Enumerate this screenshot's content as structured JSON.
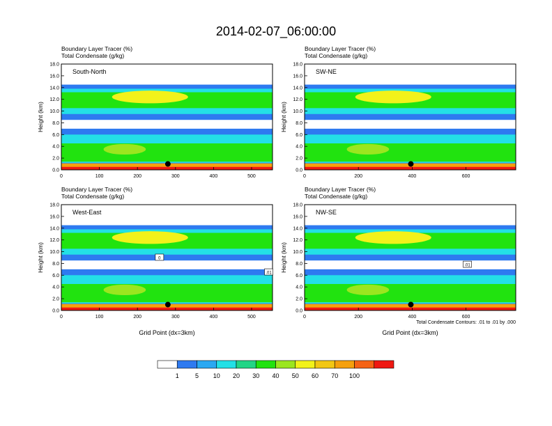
{
  "title": "2014-02-07_06:00:00",
  "colorbar": {
    "colors": [
      "#ffffff",
      "#2e7af0",
      "#2aa8f2",
      "#23e0e6",
      "#22d586",
      "#21e30f",
      "#9be61f",
      "#f2f21a",
      "#f2c713",
      "#f5a00d",
      "#f56215",
      "#ef1812"
    ],
    "labels": [
      "1",
      "5",
      "10",
      "20",
      "30",
      "40",
      "50",
      "60",
      "70",
      "100"
    ]
  },
  "contour_note": "Total Condensate Contours: .01 to .01 by .000",
  "chart_data": [
    {
      "type": "heatmap",
      "label": "South-North",
      "lines": [
        "Boundary Layer Tracer   (%)",
        "Total Condensate   (g/kg)"
      ],
      "xlabel": "",
      "ylabel": "Height (km)",
      "xlim": [
        0,
        555
      ],
      "ylim": [
        0,
        18
      ],
      "xticks": [
        "0",
        "100",
        "200",
        "300",
        "400",
        "500"
      ],
      "yticks": [
        "0.0",
        "2.0",
        "4.0",
        "6.0",
        "8.0",
        "10.0",
        "12.0",
        "14.0",
        "16.0",
        "18.0"
      ],
      "marker": {
        "x": 280,
        "y": 1.0
      },
      "boxes": []
    },
    {
      "type": "heatmap",
      "label": "SW-NE",
      "lines": [
        "Boundary Layer Tracer   (%)",
        "Total Condensate   (g/kg)"
      ],
      "xlabel": "",
      "ylabel": "Height (km)",
      "xlim": [
        0,
        785
      ],
      "ylim": [
        0,
        18
      ],
      "xticks": [
        "0",
        "200",
        "400",
        "600"
      ],
      "yticks": [
        "0.0",
        "2.0",
        "4.0",
        "6.0",
        "8.0",
        "10.0",
        "12.0",
        "14.0",
        "16.0",
        "18.0"
      ],
      "marker": {
        "x": 395,
        "y": 1.0
      },
      "boxes": []
    },
    {
      "type": "heatmap",
      "label": "West-East",
      "lines": [
        "Boundary Layer Tracer   (%)",
        "Total Condensate   (g/kg)"
      ],
      "xlabel": "Grid Point (dx=3km)",
      "ylabel": "Height (km)",
      "xlim": [
        0,
        555
      ],
      "ylim": [
        0,
        18
      ],
      "xticks": [
        "0",
        "100",
        "200",
        "300",
        "400",
        "500"
      ],
      "yticks": [
        "0.0",
        "2.0",
        "4.0",
        "6.0",
        "8.0",
        "10.0",
        "12.0",
        "14.0",
        "16.0",
        "18.0"
      ],
      "marker": {
        "x": 280,
        "y": 1.0
      },
      "boxes": [
        {
          "text": "0",
          "x": 258,
          "y": 9.0
        },
        {
          "text": ".01",
          "x": 545,
          "y": 6.5
        }
      ]
    },
    {
      "type": "heatmap",
      "label": "NW-SE",
      "lines": [
        "Boundary Layer Tracer   (%)",
        "Total Condensate   (g/kg)"
      ],
      "xlabel": "Grid Point (dx=3km)",
      "ylabel": "Height (km)",
      "xlim": [
        0,
        785
      ],
      "ylim": [
        0,
        18
      ],
      "xticks": [
        "0",
        "200",
        "400",
        "600"
      ],
      "yticks": [
        "0.0",
        "2.0",
        "4.0",
        "6.0",
        "8.0",
        "10.0",
        "12.0",
        "14.0",
        "16.0",
        "18.0"
      ],
      "marker": {
        "x": 395,
        "y": 1.0
      },
      "boxes": [
        {
          "text": ".01",
          "x": 605,
          "y": 7.8
        }
      ]
    }
  ]
}
